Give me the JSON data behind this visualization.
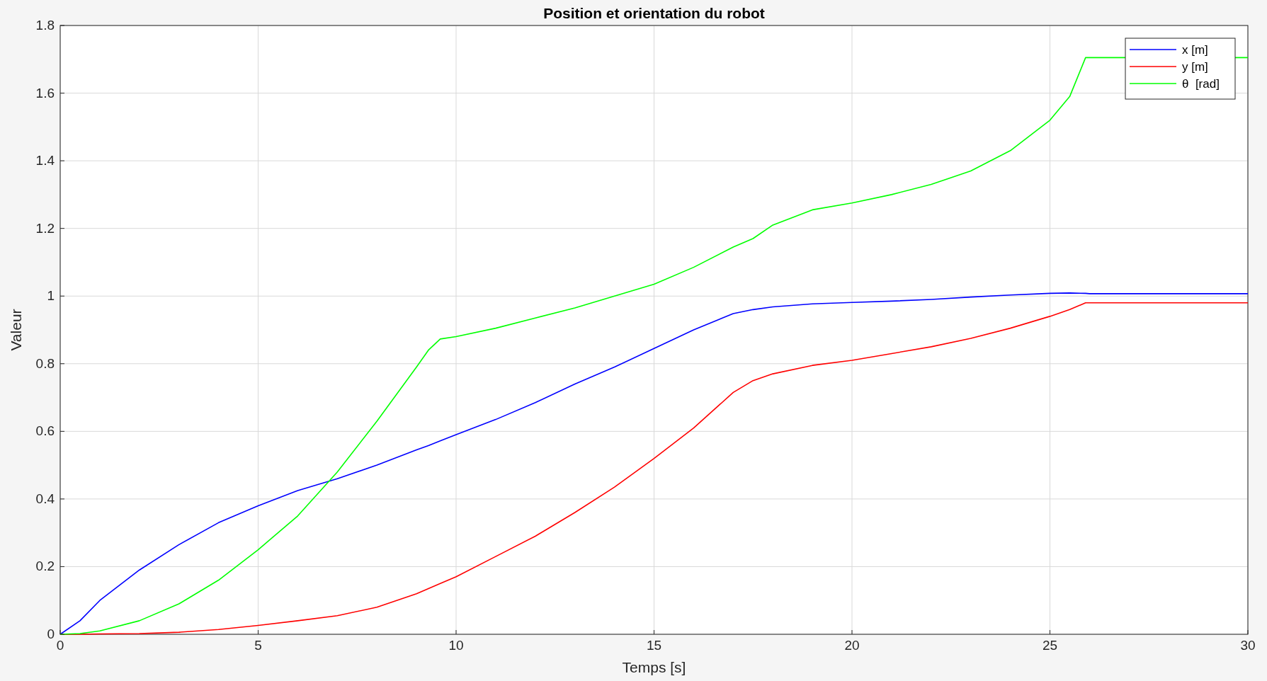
{
  "chart_data": {
    "type": "line",
    "title": "Position et orientation du robot",
    "xlabel": "Temps [s]",
    "ylabel": "Valeur",
    "xlim": [
      0,
      30
    ],
    "ylim": [
      0,
      1.8
    ],
    "xticks": [
      0,
      5,
      10,
      15,
      20,
      25,
      30
    ],
    "yticks": [
      0,
      0.2,
      0.4,
      0.6,
      0.8,
      1,
      1.2,
      1.4,
      1.6,
      1.8
    ],
    "grid": true,
    "legend": "top right",
    "line_style": "solid",
    "x": [
      0,
      0.5,
      1,
      2,
      3,
      4,
      5,
      6,
      7,
      8,
      9,
      9.3,
      9.6,
      10,
      11,
      12,
      13,
      14,
      15,
      16,
      17,
      17.5,
      18,
      19,
      20,
      21,
      22,
      23,
      24,
      25,
      25.5,
      25.9,
      26,
      30
    ],
    "series": [
      {
        "name": "x [m]",
        "color": "#0000ff",
        "values": [
          0,
          0.04,
          0.1,
          0.19,
          0.265,
          0.33,
          0.38,
          0.425,
          0.46,
          0.5,
          0.545,
          0.558,
          0.572,
          0.59,
          0.635,
          0.685,
          0.74,
          0.79,
          0.845,
          0.9,
          0.948,
          0.96,
          0.968,
          0.977,
          0.981,
          0.985,
          0.99,
          0.997,
          1.003,
          1.008,
          1.009,
          1.008,
          1.007,
          1.007
        ]
      },
      {
        "name": "y [m]",
        "color": "#ff0000",
        "values": [
          0,
          0,
          0.001,
          0.002,
          0.006,
          0.014,
          0.026,
          0.04,
          0.055,
          0.08,
          0.12,
          0.135,
          0.15,
          0.17,
          0.23,
          0.29,
          0.36,
          0.435,
          0.52,
          0.61,
          0.715,
          0.75,
          0.77,
          0.795,
          0.81,
          0.83,
          0.85,
          0.875,
          0.905,
          0.94,
          0.96,
          0.98,
          0.98,
          0.98
        ]
      },
      {
        "name": "θ  [rad]",
        "color": "#00ff00",
        "values": [
          0,
          0.002,
          0.01,
          0.04,
          0.09,
          0.16,
          0.25,
          0.35,
          0.48,
          0.63,
          0.79,
          0.84,
          0.873,
          0.88,
          0.905,
          0.935,
          0.965,
          1.0,
          1.035,
          1.085,
          1.145,
          1.17,
          1.21,
          1.255,
          1.275,
          1.3,
          1.33,
          1.37,
          1.43,
          1.52,
          1.59,
          1.705,
          1.705,
          1.705
        ]
      }
    ]
  }
}
